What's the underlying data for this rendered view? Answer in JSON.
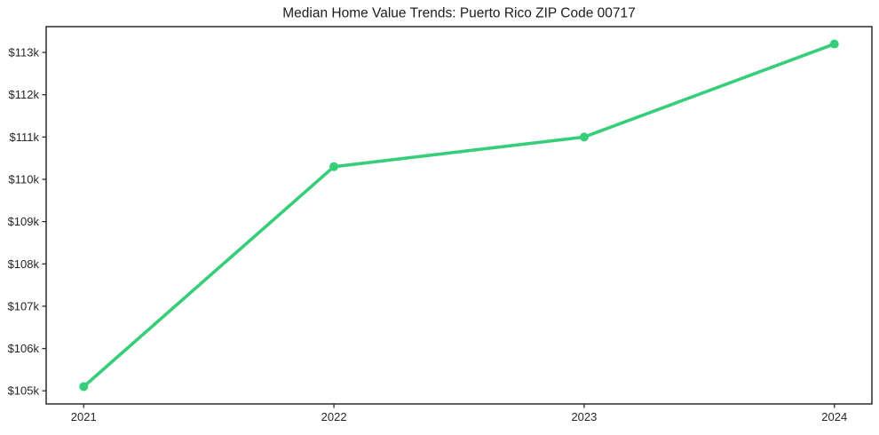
{
  "chart_data": {
    "type": "line",
    "title": "Median Home Value Trends: Puerto Rico ZIP Code 00717",
    "x": [
      2021,
      2022,
      2023,
      2024
    ],
    "xtick_labels": [
      "2021",
      "2022",
      "2023",
      "2024"
    ],
    "values_usd_k": [
      105.1,
      110.3,
      111.0,
      113.2
    ],
    "yticks_usd_k": [
      105,
      106,
      107,
      108,
      109,
      110,
      111,
      112,
      113
    ],
    "ytick_labels": [
      "$105k",
      "$106k",
      "$107k",
      "$108k",
      "$109k",
      "$110k",
      "$111k",
      "$112k",
      "$113k"
    ],
    "xlim": [
      2020.85,
      2024.15
    ],
    "ylim": [
      104.69,
      113.61
    ],
    "grid": false,
    "legend": "none",
    "marker": "circle",
    "line_color": "#36ce78",
    "frame_color": "#2b2b2b",
    "text_color": "#262626",
    "background": "#ffffff"
  }
}
